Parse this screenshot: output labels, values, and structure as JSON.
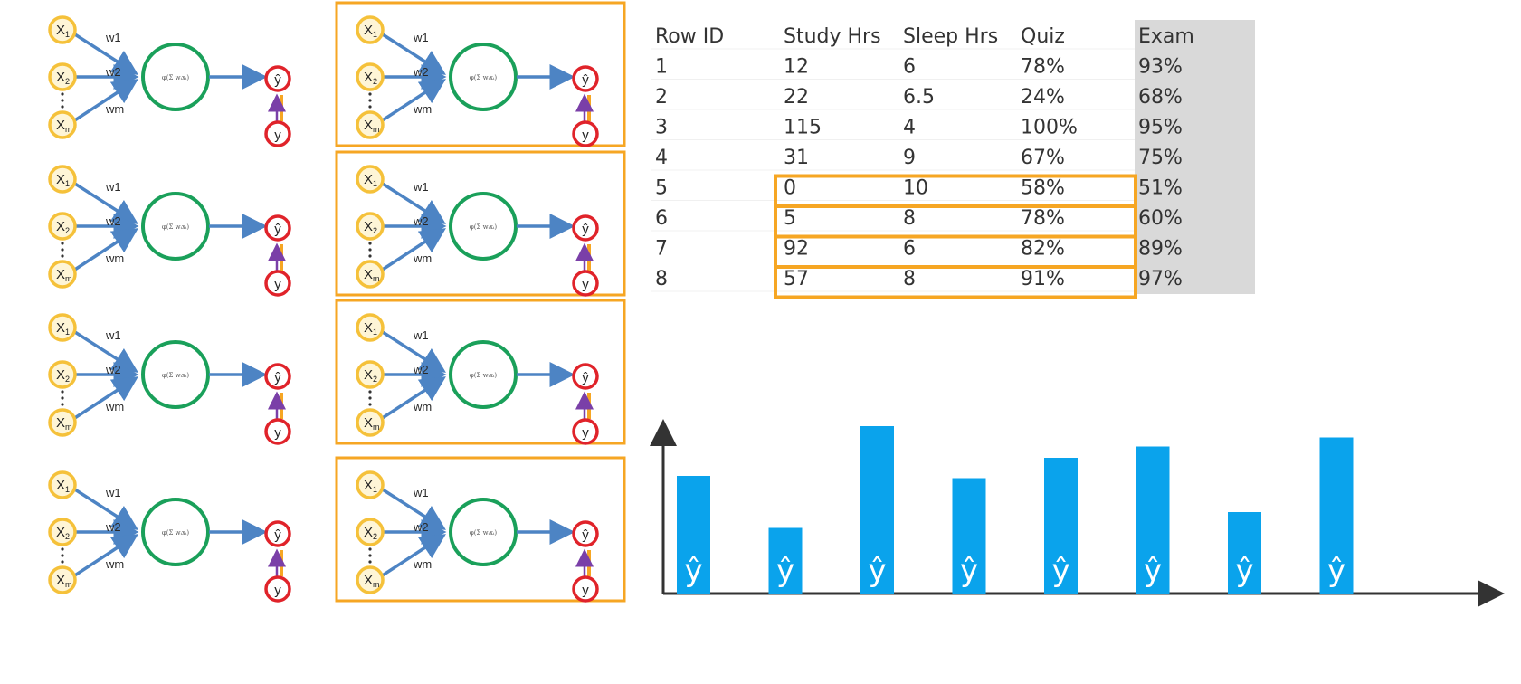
{
  "network": {
    "inputs": [
      "X",
      "X",
      "X"
    ],
    "input_subscripts": [
      "1",
      "2",
      "m"
    ],
    "weights": [
      "w1",
      "w2",
      "wm"
    ],
    "output": "ŷ",
    "target": "y",
    "activation_formula": "φ(Σ wᵢxᵢ)"
  },
  "table": {
    "headers": [
      "Row ID",
      "Study Hrs",
      "Sleep Hrs",
      "Quiz",
      "Exam"
    ],
    "rows": [
      [
        "1",
        "12",
        "6",
        "78%",
        "93%"
      ],
      [
        "2",
        "22",
        "6.5",
        "24%",
        "68%"
      ],
      [
        "3",
        "115",
        "4",
        "100%",
        "95%"
      ],
      [
        "4",
        "31",
        "9",
        "67%",
        "75%"
      ],
      [
        "5",
        "0",
        "10",
        "58%",
        "51%"
      ],
      [
        "6",
        "5",
        "8",
        "78%",
        "60%"
      ],
      [
        "7",
        "92",
        "6",
        "82%",
        "89%"
      ],
      [
        "8",
        "57",
        "8",
        "91%",
        "97%"
      ]
    ],
    "highlighted_rows": [
      5,
      6,
      7,
      8
    ]
  },
  "chart_data": {
    "type": "bar",
    "bar_label": "ŷ",
    "values": [
      0.52,
      0.29,
      0.74,
      0.51,
      0.6,
      0.65,
      0.36,
      0.69
    ],
    "ylim": [
      0,
      0.8
    ],
    "colors": {
      "bar": "#0aa3ec",
      "axis": "#333333"
    }
  },
  "colors": {
    "input_fill": "#fef5d6",
    "input_stroke": "#f5c13a",
    "neuron_stroke": "#1aa05a",
    "arrow": "#4d84c4",
    "output_stroke": "#e0232a",
    "highlight": "#f6a623",
    "exam_column": "#d9d9d9"
  }
}
